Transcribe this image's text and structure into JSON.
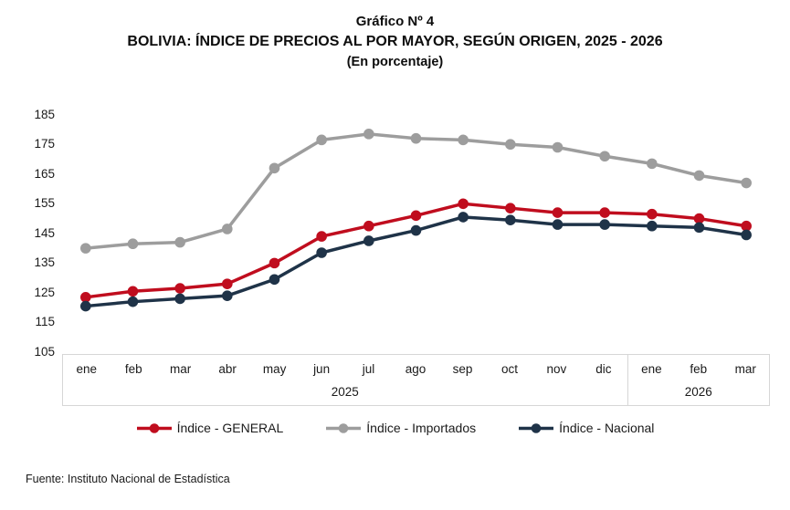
{
  "title": {
    "line1": "Gráfico Nº 4",
    "line2": "BOLIVIA: ÍNDICE DE PRECIOS AL POR MAYOR, SEGÚN ORIGEN, 2025 - 2026",
    "line3": "(En porcentaje)"
  },
  "chart_data": {
    "type": "line",
    "title": "BOLIVIA: ÍNDICE DE PRECIOS AL POR MAYOR, SEGÚN ORIGEN, 2025 - 2026",
    "subtitle": "(En porcentaje)",
    "categories": [
      "ene",
      "feb",
      "mar",
      "abr",
      "may",
      "jun",
      "jul",
      "ago",
      "sep",
      "oct",
      "nov",
      "dic",
      "ene",
      "feb",
      "mar"
    ],
    "year_groups": [
      {
        "label": "2025",
        "span": 12
      },
      {
        "label": "2026",
        "span": 3
      }
    ],
    "series": [
      {
        "name": "Índice - GENERAL",
        "color": "#C00D1E",
        "values": [
          123.5,
          125.5,
          126.5,
          128,
          135,
          144,
          147.5,
          151,
          155,
          153.5,
          152,
          152,
          151.5,
          150,
          147.5
        ]
      },
      {
        "name": "Índice - Importados",
        "color": "#9D9D9D",
        "values": [
          140,
          141.5,
          142,
          146.5,
          167,
          176.5,
          178.5,
          177,
          176.5,
          175,
          174,
          171,
          168.5,
          164.5,
          162
        ]
      },
      {
        "name": "Índice - Nacional",
        "color": "#1F3348",
        "values": [
          120.5,
          122,
          123,
          124,
          129.5,
          138.5,
          142.5,
          146,
          150.5,
          149.5,
          148,
          148,
          147.5,
          147,
          144.5
        ]
      }
    ],
    "ylim": [
      105,
      185
    ],
    "yticks": [
      185,
      175,
      165,
      155,
      145,
      135,
      125,
      115,
      105
    ],
    "grid": false,
    "legend_position": "bottom",
    "marker": "circle"
  },
  "footer": {
    "source": "Fuente: Instituto Nacional de Estadística"
  }
}
